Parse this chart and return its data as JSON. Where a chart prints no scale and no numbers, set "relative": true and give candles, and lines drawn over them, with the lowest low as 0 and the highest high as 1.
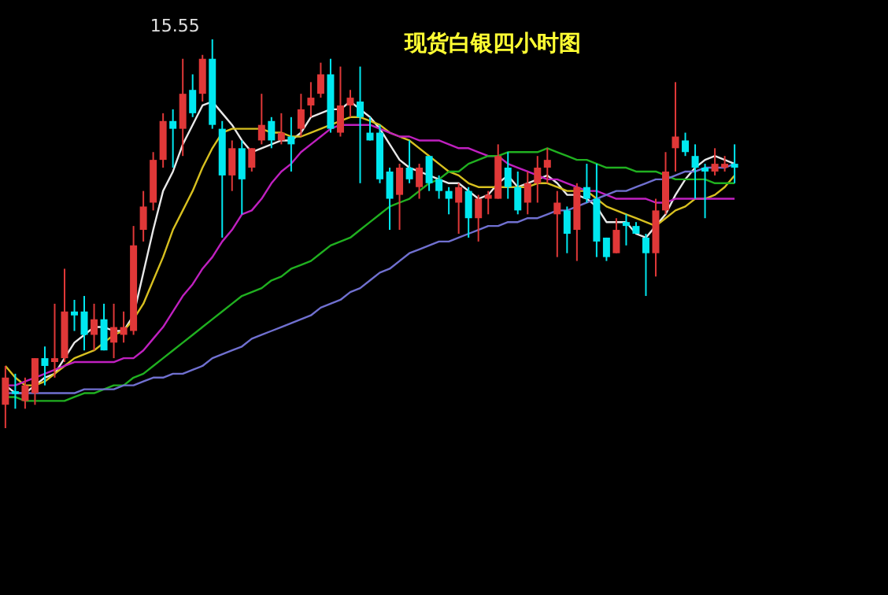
{
  "chart_data": {
    "type": "candlestick",
    "title": "现货白银四小时图",
    "relative": true,
    "categories": [
      null,
      null,
      null,
      null,
      null,
      null,
      null,
      null,
      null,
      null,
      null,
      null,
      null,
      null,
      null,
      null,
      null,
      null,
      null,
      null,
      null,
      null,
      null,
      null,
      null,
      null,
      null,
      null,
      null,
      null,
      null,
      null,
      null,
      null,
      null,
      null,
      null,
      null,
      null,
      null,
      null,
      null,
      null,
      null,
      null,
      null,
      null,
      null,
      null,
      null,
      null,
      null,
      null,
      null,
      null,
      null,
      null,
      null,
      null,
      null,
      null,
      null,
      null,
      null,
      null,
      null,
      null,
      null,
      null,
      null,
      null,
      null,
      null,
      null,
      null
    ],
    "ohlc": [
      [
        0.06,
        0.16,
        0,
        0.13
      ],
      [
        0.095,
        0.14,
        0.05,
        0.088
      ],
      [
        0.07,
        0.13,
        0.05,
        0.11
      ],
      [
        0.09,
        0.18,
        0.06,
        0.18
      ],
      [
        0.18,
        0.21,
        0.11,
        0.16
      ],
      [
        0.17,
        0.32,
        0.13,
        0.18
      ],
      [
        0.18,
        0.41,
        0.17,
        0.3
      ],
      [
        0.3,
        0.33,
        0.25,
        0.29
      ],
      [
        0.3,
        0.34,
        0.2,
        0.24
      ],
      [
        0.24,
        0.32,
        0.2,
        0.28
      ],
      [
        0.28,
        0.32,
        0.2,
        0.2
      ],
      [
        0.22,
        0.32,
        0.18,
        0.26
      ],
      [
        0.24,
        0.3,
        0.22,
        0.26
      ],
      [
        0.25,
        0.52,
        0.24,
        0.47
      ],
      [
        0.51,
        0.61,
        0.48,
        0.57
      ],
      [
        0.58,
        0.71,
        0.56,
        0.69
      ],
      [
        0.69,
        0.81,
        0.67,
        0.79
      ],
      [
        0.79,
        0.82,
        0.67,
        0.77
      ],
      [
        0.77,
        0.95,
        0.7,
        0.86
      ],
      [
        0.87,
        0.91,
        0.8,
        0.81
      ],
      [
        0.86,
        0.96,
        0.84,
        0.95
      ],
      [
        0.95,
        1,
        0.77,
        0.78
      ],
      [
        0.77,
        0.79,
        0.49,
        0.65
      ],
      [
        0.65,
        0.74,
        0.61,
        0.72
      ],
      [
        0.72,
        0.74,
        0.55,
        0.64
      ],
      [
        0.67,
        0.72,
        0.66,
        0.72
      ],
      [
        0.74,
        0.86,
        0.73,
        0.78
      ],
      [
        0.79,
        0.8,
        0.72,
        0.74
      ],
      [
        0.74,
        0.81,
        0.73,
        0.76
      ],
      [
        0.75,
        0.8,
        0.66,
        0.73
      ],
      [
        0.77,
        0.86,
        0.75,
        0.82
      ],
      [
        0.83,
        0.89,
        0.8,
        0.85
      ],
      [
        0.86,
        0.94,
        0.85,
        0.91
      ],
      [
        0.91,
        0.95,
        0.76,
        0.77
      ],
      [
        0.76,
        0.93,
        0.75,
        0.83
      ],
      [
        0.83,
        0.87,
        0.8,
        0.85
      ],
      [
        0.84,
        0.93,
        0.63,
        0.8
      ],
      [
        0.76,
        0.8,
        0.74,
        0.74
      ],
      [
        0.76,
        0.78,
        0.63,
        0.64
      ],
      [
        0.66,
        0.67,
        0.51,
        0.59
      ],
      [
        0.6,
        0.68,
        0.51,
        0.67
      ],
      [
        0.67,
        0.74,
        0.63,
        0.64
      ],
      [
        0.62,
        0.68,
        0.59,
        0.67
      ],
      [
        0.7,
        0.7,
        0.61,
        0.63
      ],
      [
        0.64,
        0.65,
        0.59,
        0.61
      ],
      [
        0.61,
        0.62,
        0.55,
        0.59
      ],
      [
        0.58,
        0.63,
        0.5,
        0.62
      ],
      [
        0.61,
        0.62,
        0.49,
        0.54
      ],
      [
        0.54,
        0.6,
        0.48,
        0.59
      ],
      [
        0.59,
        0.61,
        0.55,
        0.6
      ],
      [
        0.59,
        0.73,
        0.59,
        0.7
      ],
      [
        0.67,
        0.71,
        0.59,
        0.62
      ],
      [
        0.62,
        0.66,
        0.55,
        0.56
      ],
      [
        0.58,
        0.66,
        0.55,
        0.63
      ],
      [
        0.63,
        0.7,
        0.58,
        0.67
      ],
      [
        0.67,
        0.72,
        0.63,
        0.69
      ],
      [
        0.55,
        0.61,
        0.44,
        0.58
      ],
      [
        0.56,
        0.57,
        0.45,
        0.5
      ],
      [
        0.51,
        0.63,
        0.43,
        0.62
      ],
      [
        0.62,
        0.68,
        0.58,
        0.59
      ],
      [
        0.59,
        0.68,
        0.44,
        0.48
      ],
      [
        0.49,
        0.49,
        0.43,
        0.44
      ],
      [
        0.45,
        0.54,
        0.45,
        0.51
      ],
      [
        0.53,
        0.55,
        0.47,
        0.52
      ],
      [
        0.52,
        0.53,
        0.5,
        0.5
      ],
      [
        0.49,
        0.5,
        0.34,
        0.45
      ],
      [
        0.45,
        0.59,
        0.39,
        0.56
      ],
      [
        0.56,
        0.71,
        0.55,
        0.66
      ],
      [
        0.72,
        0.89,
        0.66,
        0.75
      ],
      [
        0.74,
        0.76,
        0.7,
        0.71
      ],
      [
        0.7,
        0.73,
        0.59,
        0.67
      ],
      [
        0.67,
        0.68,
        0.54,
        0.66
      ],
      [
        0.66,
        0.72,
        0.65,
        0.68
      ],
      [
        0.67,
        0.7,
        0.66,
        0.68
      ],
      [
        0.68,
        0.73,
        0.63,
        0.67
      ]
    ],
    "series": [
      {
        "type": "line",
        "color": "#e8e8e8",
        "values": [
          0.11,
          0.09,
          0.09,
          0.11,
          0.13,
          0.14,
          0.18,
          0.22,
          0.24,
          0.26,
          0.26,
          0.25,
          0.25,
          0.29,
          0.4,
          0.51,
          0.61,
          0.66,
          0.73,
          0.78,
          0.83,
          0.84,
          0.81,
          0.78,
          0.74,
          0.71,
          0.72,
          0.73,
          0.74,
          0.74,
          0.76,
          0.8,
          0.81,
          0.82,
          0.82,
          0.84,
          0.82,
          0.8,
          0.77,
          0.73,
          0.69,
          0.67,
          0.66,
          0.65,
          0.64,
          0.63,
          0.63,
          0.61,
          0.59,
          0.6,
          0.63,
          0.65,
          0.62,
          0.63,
          0.64,
          0.65,
          0.63,
          0.6,
          0.6,
          0.59,
          0.57,
          0.53,
          0.53,
          0.53,
          0.5,
          0.49,
          0.52,
          0.55,
          0.6,
          0.64,
          0.67,
          0.69,
          0.7,
          0.69,
          0.68
        ]
      },
      {
        "type": "line",
        "color": "#d8c020",
        "values": [
          0.16,
          0.13,
          0.11,
          0.11,
          0.12,
          0.14,
          0.16,
          0.18,
          0.19,
          0.2,
          0.22,
          0.24,
          0.25,
          0.28,
          0.32,
          0.38,
          0.44,
          0.51,
          0.56,
          0.61,
          0.67,
          0.72,
          0.76,
          0.77,
          0.77,
          0.77,
          0.77,
          0.76,
          0.76,
          0.75,
          0.75,
          0.76,
          0.77,
          0.78,
          0.79,
          0.8,
          0.8,
          0.79,
          0.78,
          0.76,
          0.75,
          0.74,
          0.72,
          0.7,
          0.68,
          0.66,
          0.65,
          0.63,
          0.62,
          0.62,
          0.62,
          0.62,
          0.62,
          0.62,
          0.63,
          0.63,
          0.62,
          0.61,
          0.61,
          0.61,
          0.59,
          0.57,
          0.56,
          0.55,
          0.54,
          0.53,
          0.52,
          0.54,
          0.56,
          0.57,
          0.59,
          0.59,
          0.6,
          0.62,
          0.65
        ]
      },
      {
        "type": "line",
        "color": "#c020c0",
        "values": [
          0.11,
          0.11,
          0.12,
          0.13,
          0.14,
          0.15,
          0.16,
          0.17,
          0.17,
          0.17,
          0.17,
          0.17,
          0.18,
          0.18,
          0.2,
          0.23,
          0.26,
          0.3,
          0.34,
          0.37,
          0.41,
          0.44,
          0.48,
          0.51,
          0.55,
          0.56,
          0.59,
          0.63,
          0.66,
          0.68,
          0.71,
          0.73,
          0.75,
          0.77,
          0.78,
          0.78,
          0.78,
          0.78,
          0.77,
          0.76,
          0.75,
          0.75,
          0.74,
          0.74,
          0.74,
          0.73,
          0.72,
          0.72,
          0.71,
          0.7,
          0.7,
          0.68,
          0.67,
          0.66,
          0.65,
          0.64,
          0.64,
          0.63,
          0.62,
          0.61,
          0.61,
          0.6,
          0.59,
          0.59,
          0.59,
          0.59,
          0.58,
          0.58,
          0.59,
          0.59,
          0.59,
          0.59,
          0.59,
          0.59,
          0.59
        ]
      },
      {
        "type": "line",
        "color": "#20b020",
        "values": [
          0.08,
          0.08,
          0.07,
          0.07,
          0.07,
          0.07,
          0.07,
          0.08,
          0.09,
          0.09,
          0.1,
          0.11,
          0.11,
          0.13,
          0.14,
          0.16,
          0.18,
          0.2,
          0.22,
          0.24,
          0.26,
          0.28,
          0.3,
          0.32,
          0.34,
          0.35,
          0.36,
          0.38,
          0.39,
          0.41,
          0.42,
          0.43,
          0.45,
          0.47,
          0.48,
          0.49,
          0.51,
          0.53,
          0.55,
          0.57,
          0.58,
          0.59,
          0.61,
          0.63,
          0.64,
          0.66,
          0.66,
          0.68,
          0.69,
          0.7,
          0.7,
          0.71,
          0.71,
          0.71,
          0.71,
          0.72,
          0.71,
          0.7,
          0.69,
          0.69,
          0.68,
          0.67,
          0.67,
          0.67,
          0.66,
          0.66,
          0.66,
          0.65,
          0.64,
          0.64,
          0.64,
          0.64,
          0.63,
          0.63,
          0.63
        ]
      },
      {
        "type": "line",
        "color": "#7070d0",
        "values": [
          0.09,
          0.09,
          0.09,
          0.09,
          0.09,
          0.09,
          0.09,
          0.09,
          0.1,
          0.1,
          0.1,
          0.1,
          0.11,
          0.11,
          0.12,
          0.13,
          0.13,
          0.14,
          0.14,
          0.15,
          0.16,
          0.18,
          0.19,
          0.2,
          0.21,
          0.23,
          0.24,
          0.25,
          0.26,
          0.27,
          0.28,
          0.29,
          0.31,
          0.32,
          0.33,
          0.35,
          0.36,
          0.38,
          0.4,
          0.41,
          0.43,
          0.45,
          0.46,
          0.47,
          0.48,
          0.48,
          0.49,
          0.5,
          0.51,
          0.52,
          0.52,
          0.53,
          0.53,
          0.54,
          0.54,
          0.55,
          0.56,
          0.56,
          0.57,
          0.58,
          0.59,
          0.6,
          0.61,
          0.61,
          0.62,
          0.63,
          0.64,
          0.64,
          0.65,
          0.66,
          0.66,
          0.67,
          0.67,
          0.67,
          0.68
        ]
      }
    ],
    "annotations": [
      "15.55"
    ]
  }
}
